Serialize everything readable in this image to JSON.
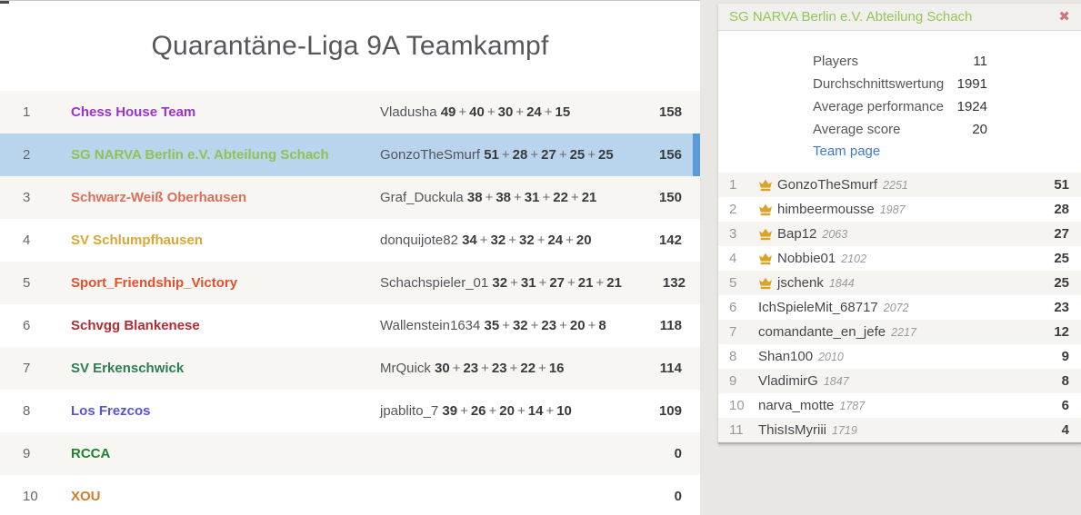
{
  "left_panel": {
    "title": "Quarantäne-Liga 9A Teamkampf",
    "rows": [
      {
        "rank": "1",
        "team": "Chess House Team",
        "team_color": "#9b33cc",
        "player": "Vladusha",
        "scores": [
          "49",
          "40",
          "30",
          "24",
          "15"
        ],
        "total": "158",
        "selected": false
      },
      {
        "rank": "2",
        "team": "SG NARVA Berlin e.V. Abteilung Schach",
        "team_color": "#8fc454",
        "player": "GonzoTheSmurf",
        "scores": [
          "51",
          "28",
          "27",
          "25",
          "25"
        ],
        "total": "156",
        "selected": true
      },
      {
        "rank": "3",
        "team": "Schwarz-Weiß Oberhausen",
        "team_color": "#dd6f5a",
        "player": "Graf_Duckula",
        "scores": [
          "38",
          "38",
          "31",
          "22",
          "21"
        ],
        "total": "150",
        "selected": false
      },
      {
        "rank": "4",
        "team": "SV Schlumpfhausen",
        "team_color": "#d9a834",
        "player": "donquijote82",
        "scores": [
          "34",
          "32",
          "32",
          "24",
          "20"
        ],
        "total": "142",
        "selected": false
      },
      {
        "rank": "5",
        "team": "Sport_Friendship_Victory",
        "team_color": "#e2512c",
        "player": "Schachspieler_01",
        "scores": [
          "32",
          "31",
          "27",
          "21",
          "21"
        ],
        "total": "132",
        "selected": false
      },
      {
        "rank": "6",
        "team": "Schvgg Blankenese",
        "team_color": "#b02d33",
        "player": "Wallenstein1634",
        "scores": [
          "35",
          "32",
          "23",
          "20",
          "8"
        ],
        "total": "118",
        "selected": false
      },
      {
        "rank": "7",
        "team": "SV Erkenschwick",
        "team_color": "#2e7d52",
        "player": "MrQuick",
        "scores": [
          "30",
          "23",
          "23",
          "22",
          "16"
        ],
        "total": "114",
        "selected": false
      },
      {
        "rank": "8",
        "team": "Los Frezcos",
        "team_color": "#5a52dd",
        "player": "jpablito_7",
        "scores": [
          "39",
          "26",
          "20",
          "14",
          "10"
        ],
        "total": "109",
        "selected": false
      },
      {
        "rank": "9",
        "team": "RCCA",
        "team_color": "#218233",
        "player": "",
        "scores": [],
        "total": "0",
        "selected": false
      },
      {
        "rank": "10",
        "team": "XOU",
        "team_color": "#cf7c2e",
        "player": "",
        "scores": [],
        "total": "0",
        "selected": false
      }
    ]
  },
  "panel": {
    "title": "SG NARVA Berlin e.V. Abteilung Schach",
    "title_color": "#92c756",
    "close_icon": "✖",
    "close_color": "#ca777e",
    "stats": [
      {
        "label": "Players",
        "value": "11"
      },
      {
        "label": "Durchschnittswertung",
        "value": "1991"
      },
      {
        "label": "Average performance",
        "value": "1924"
      },
      {
        "label": "Average score",
        "value": "20"
      }
    ],
    "team_page_label": "Team page",
    "crown_color": "#dba429",
    "players": [
      {
        "rank": "1",
        "crown": true,
        "name": "GonzoTheSmurf",
        "rating": "2251",
        "score": "51"
      },
      {
        "rank": "2",
        "crown": true,
        "name": "himbeermousse",
        "rating": "1987",
        "score": "28"
      },
      {
        "rank": "3",
        "crown": true,
        "name": "Bap12",
        "rating": "2063",
        "score": "27"
      },
      {
        "rank": "4",
        "crown": true,
        "name": "Nobbie01",
        "rating": "2102",
        "score": "25"
      },
      {
        "rank": "5",
        "crown": true,
        "name": "jschenk",
        "rating": "1844",
        "score": "25"
      },
      {
        "rank": "6",
        "crown": false,
        "name": "IchSpieleMit_68717",
        "rating": "2072",
        "score": "23"
      },
      {
        "rank": "7",
        "crown": false,
        "name": "comandante_en_jefe",
        "rating": "2217",
        "score": "12"
      },
      {
        "rank": "8",
        "crown": false,
        "name": "Shan100",
        "rating": "2010",
        "score": "9"
      },
      {
        "rank": "9",
        "crown": false,
        "name": "VladimirG",
        "rating": "1847",
        "score": "8"
      },
      {
        "rank": "10",
        "crown": false,
        "name": "narva_motte",
        "rating": "1787",
        "score": "6"
      },
      {
        "rank": "11",
        "crown": false,
        "name": "ThisIsMyriii",
        "rating": "1719",
        "score": "4"
      }
    ]
  },
  "colors": {
    "selected_row_bg": "#b9d4ed",
    "selected_row_bar": "#5b9bd5",
    "page_background": "#e9e7e3",
    "link_blue": "#3c7dca"
  }
}
